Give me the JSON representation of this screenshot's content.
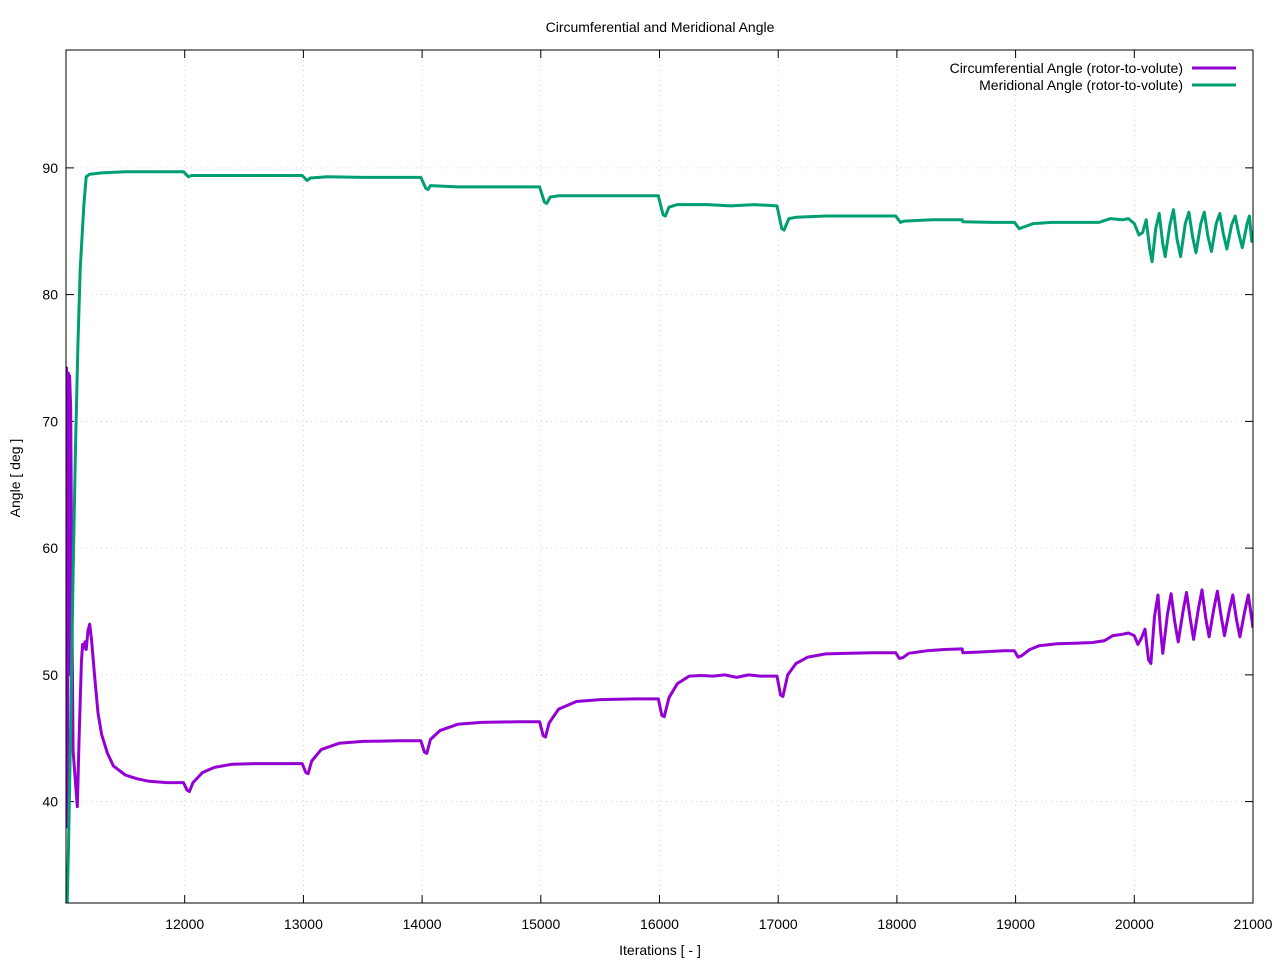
{
  "chart_data": {
    "type": "line",
    "title": "Circumferential and Meridional Angle",
    "xlabel": "Iterations [ - ]",
    "ylabel": "Angle [ deg ]",
    "xlim": [
      11000,
      21000
    ],
    "ylim": [
      32,
      99.3
    ],
    "x_ticks": [
      "12000",
      "13000",
      "14000",
      "15000",
      "16000",
      "17000",
      "18000",
      "19000",
      "20000",
      "21000"
    ],
    "x_tick_values": [
      12000,
      13000,
      14000,
      15000,
      16000,
      17000,
      18000,
      19000,
      20000,
      21000
    ],
    "y_ticks": [
      "40",
      "50",
      "60",
      "70",
      "80",
      "90"
    ],
    "y_tick_values": [
      40,
      50,
      60,
      70,
      80,
      90
    ],
    "grid": true,
    "legend_position": "top-right",
    "series": [
      {
        "name": "Circumferential Angle (rotor-to-volute)",
        "color": "#9400d3",
        "points": [
          [
            11000,
            55
          ],
          [
            11005,
            74.2
          ],
          [
            11012,
            38
          ],
          [
            11020,
            73.8
          ],
          [
            11025,
            50
          ],
          [
            11030,
            73.6
          ],
          [
            11040,
            71
          ],
          [
            11050,
            55
          ],
          [
            11060,
            44
          ],
          [
            11080,
            41.5
          ],
          [
            11095,
            39.6
          ],
          [
            11110,
            45
          ],
          [
            11130,
            51
          ],
          [
            11140,
            52.4
          ],
          [
            11150,
            52.1
          ],
          [
            11160,
            52.6
          ],
          [
            11170,
            52.0
          ],
          [
            11185,
            53.5
          ],
          [
            11200,
            54.0
          ],
          [
            11215,
            52.8
          ],
          [
            11240,
            50.0
          ],
          [
            11270,
            47.0
          ],
          [
            11300,
            45.3
          ],
          [
            11350,
            43.8
          ],
          [
            11400,
            42.8
          ],
          [
            11500,
            42.1
          ],
          [
            11600,
            41.8
          ],
          [
            11700,
            41.6
          ],
          [
            11850,
            41.5
          ],
          [
            11990,
            41.5
          ],
          [
            12020,
            40.9
          ],
          [
            12040,
            40.8
          ],
          [
            12070,
            41.5
          ],
          [
            12150,
            42.3
          ],
          [
            12250,
            42.7
          ],
          [
            12400,
            42.95
          ],
          [
            12600,
            43.0
          ],
          [
            12800,
            43.0
          ],
          [
            12990,
            43.0
          ],
          [
            13020,
            42.3
          ],
          [
            13040,
            42.2
          ],
          [
            13070,
            43.2
          ],
          [
            13150,
            44.1
          ],
          [
            13300,
            44.6
          ],
          [
            13500,
            44.75
          ],
          [
            13800,
            44.8
          ],
          [
            13990,
            44.8
          ],
          [
            14020,
            43.9
          ],
          [
            14040,
            43.8
          ],
          [
            14070,
            44.9
          ],
          [
            14150,
            45.6
          ],
          [
            14300,
            46.1
          ],
          [
            14500,
            46.25
          ],
          [
            14800,
            46.3
          ],
          [
            14990,
            46.3
          ],
          [
            15020,
            45.2
          ],
          [
            15040,
            45.1
          ],
          [
            15070,
            46.2
          ],
          [
            15150,
            47.3
          ],
          [
            15300,
            47.9
          ],
          [
            15500,
            48.05
          ],
          [
            15800,
            48.1
          ],
          [
            15990,
            48.1
          ],
          [
            16020,
            46.8
          ],
          [
            16040,
            46.7
          ],
          [
            16080,
            48.2
          ],
          [
            16150,
            49.3
          ],
          [
            16250,
            49.9
          ],
          [
            16350,
            49.95
          ],
          [
            16450,
            49.9
          ],
          [
            16550,
            50.0
          ],
          [
            16650,
            49.8
          ],
          [
            16750,
            50.0
          ],
          [
            16850,
            49.9
          ],
          [
            16990,
            49.9
          ],
          [
            17020,
            48.4
          ],
          [
            17040,
            48.3
          ],
          [
            17080,
            50.0
          ],
          [
            17150,
            50.9
          ],
          [
            17250,
            51.4
          ],
          [
            17400,
            51.65
          ],
          [
            17600,
            51.7
          ],
          [
            17800,
            51.75
          ],
          [
            17990,
            51.75
          ],
          [
            18020,
            51.3
          ],
          [
            18050,
            51.35
          ],
          [
            18100,
            51.7
          ],
          [
            18250,
            51.9
          ],
          [
            18400,
            52.0
          ],
          [
            18550,
            52.05
          ],
          [
            18555,
            51.75
          ],
          [
            18700,
            51.8
          ],
          [
            18900,
            51.9
          ],
          [
            18990,
            51.9
          ],
          [
            19020,
            51.4
          ],
          [
            19050,
            51.5
          ],
          [
            19120,
            52.0
          ],
          [
            19200,
            52.3
          ],
          [
            19350,
            52.45
          ],
          [
            19500,
            52.5
          ],
          [
            19650,
            52.55
          ],
          [
            19750,
            52.7
          ],
          [
            19820,
            53.1
          ],
          [
            19900,
            53.2
          ],
          [
            19950,
            53.3
          ],
          [
            20000,
            53.1
          ],
          [
            20030,
            52.4
          ],
          [
            20060,
            52.9
          ],
          [
            20090,
            53.6
          ],
          [
            20120,
            51.2
          ],
          [
            20140,
            50.9
          ],
          [
            20170,
            54.6
          ],
          [
            20200,
            56.3
          ],
          [
            20220,
            53.6
          ],
          [
            20240,
            51.7
          ],
          [
            20280,
            54.8
          ],
          [
            20310,
            56.4
          ],
          [
            20340,
            54.2
          ],
          [
            20370,
            52.6
          ],
          [
            20410,
            55.0
          ],
          [
            20440,
            56.5
          ],
          [
            20470,
            54.5
          ],
          [
            20500,
            52.8
          ],
          [
            20540,
            55.2
          ],
          [
            20570,
            56.7
          ],
          [
            20600,
            54.6
          ],
          [
            20630,
            53.0
          ],
          [
            20670,
            55.2
          ],
          [
            20700,
            56.6
          ],
          [
            20730,
            54.7
          ],
          [
            20760,
            53.1
          ],
          [
            20800,
            55.1
          ],
          [
            20830,
            56.3
          ],
          [
            20860,
            54.4
          ],
          [
            20890,
            53.0
          ],
          [
            20930,
            55.0
          ],
          [
            20960,
            56.3
          ],
          [
            20990,
            54.4
          ],
          [
            21000,
            53.7
          ]
        ]
      },
      {
        "name": "Meridional Angle (rotor-to-volute)",
        "color": "#009e73",
        "points": [
          [
            11010,
            32
          ],
          [
            11020,
            36
          ],
          [
            11040,
            46
          ],
          [
            11060,
            58
          ],
          [
            11080,
            68
          ],
          [
            11100,
            76
          ],
          [
            11120,
            82
          ],
          [
            11150,
            87
          ],
          [
            11170,
            89.3
          ],
          [
            11200,
            89.5
          ],
          [
            11300,
            89.6
          ],
          [
            11500,
            89.7
          ],
          [
            11700,
            89.7
          ],
          [
            11990,
            89.7
          ],
          [
            12030,
            89.3
          ],
          [
            12060,
            89.4
          ],
          [
            12200,
            89.4
          ],
          [
            12500,
            89.4
          ],
          [
            12800,
            89.4
          ],
          [
            12990,
            89.4
          ],
          [
            13030,
            89.0
          ],
          [
            13060,
            89.2
          ],
          [
            13200,
            89.3
          ],
          [
            13500,
            89.25
          ],
          [
            13990,
            89.25
          ],
          [
            14030,
            88.4
          ],
          [
            14050,
            88.3
          ],
          [
            14070,
            88.6
          ],
          [
            14300,
            88.5
          ],
          [
            14700,
            88.5
          ],
          [
            14990,
            88.5
          ],
          [
            15030,
            87.3
          ],
          [
            15050,
            87.2
          ],
          [
            15080,
            87.7
          ],
          [
            15150,
            87.8
          ],
          [
            15400,
            87.8
          ],
          [
            15700,
            87.8
          ],
          [
            15990,
            87.8
          ],
          [
            16030,
            86.3
          ],
          [
            16050,
            86.2
          ],
          [
            16080,
            86.9
          ],
          [
            16150,
            87.1
          ],
          [
            16400,
            87.1
          ],
          [
            16600,
            87.0
          ],
          [
            16800,
            87.1
          ],
          [
            16990,
            87.0
          ],
          [
            17030,
            85.2
          ],
          [
            17050,
            85.1
          ],
          [
            17090,
            86.0
          ],
          [
            17150,
            86.1
          ],
          [
            17400,
            86.2
          ],
          [
            17700,
            86.2
          ],
          [
            17990,
            86.2
          ],
          [
            18030,
            85.7
          ],
          [
            18060,
            85.8
          ],
          [
            18300,
            85.9
          ],
          [
            18550,
            85.9
          ],
          [
            18555,
            85.75
          ],
          [
            18800,
            85.7
          ],
          [
            18990,
            85.7
          ],
          [
            19030,
            85.2
          ],
          [
            19060,
            85.3
          ],
          [
            19150,
            85.6
          ],
          [
            19300,
            85.7
          ],
          [
            19500,
            85.7
          ],
          [
            19700,
            85.7
          ],
          [
            19800,
            86.0
          ],
          [
            19900,
            85.9
          ],
          [
            19950,
            86.0
          ],
          [
            20000,
            85.6
          ],
          [
            20040,
            84.7
          ],
          [
            20070,
            84.9
          ],
          [
            20100,
            85.9
          ],
          [
            20130,
            83.6
          ],
          [
            20150,
            82.6
          ],
          [
            20180,
            85.2
          ],
          [
            20210,
            86.4
          ],
          [
            20240,
            84.0
          ],
          [
            20260,
            83.0
          ],
          [
            20300,
            85.5
          ],
          [
            20330,
            86.7
          ],
          [
            20360,
            84.4
          ],
          [
            20390,
            83.0
          ],
          [
            20430,
            85.6
          ],
          [
            20460,
            86.5
          ],
          [
            20490,
            84.6
          ],
          [
            20520,
            83.3
          ],
          [
            20560,
            85.6
          ],
          [
            20590,
            86.5
          ],
          [
            20620,
            84.6
          ],
          [
            20650,
            83.4
          ],
          [
            20690,
            85.6
          ],
          [
            20720,
            86.4
          ],
          [
            20750,
            84.8
          ],
          [
            20780,
            83.6
          ],
          [
            20820,
            85.5
          ],
          [
            20850,
            86.2
          ],
          [
            20880,
            84.8
          ],
          [
            20910,
            83.7
          ],
          [
            20950,
            85.6
          ],
          [
            20970,
            86.2
          ],
          [
            20990,
            84.2
          ],
          [
            21000,
            85.0
          ]
        ]
      }
    ]
  }
}
